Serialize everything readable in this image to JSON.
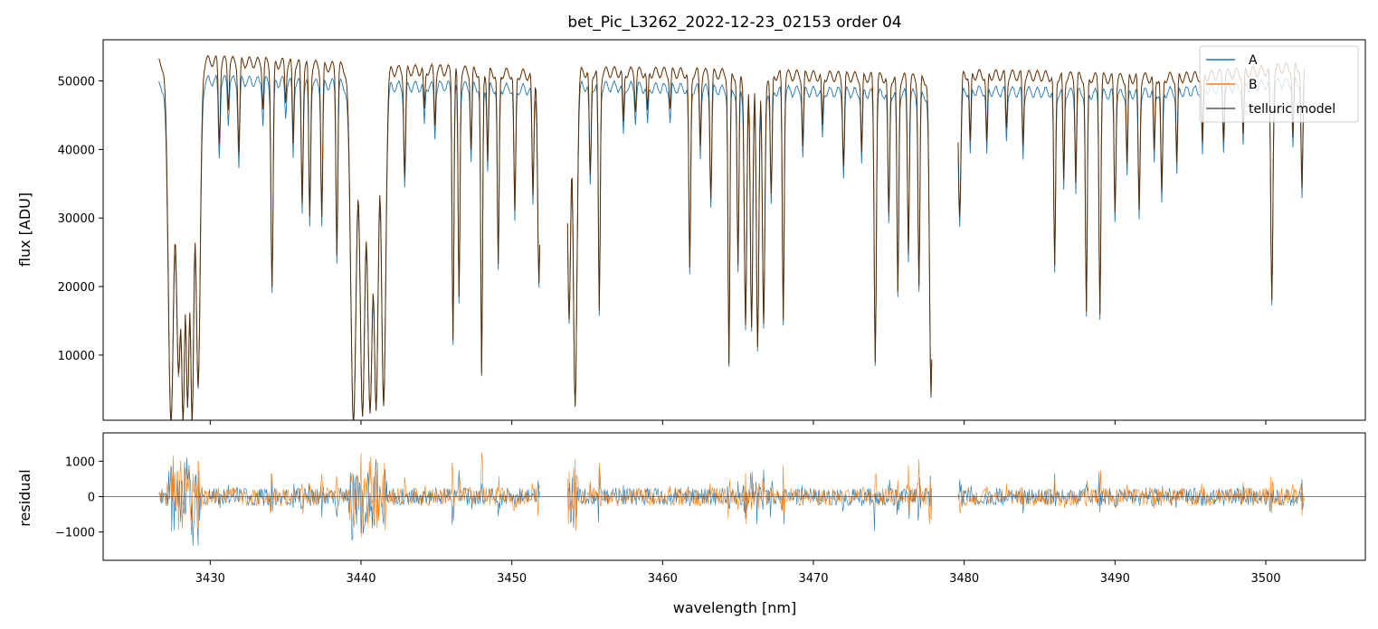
{
  "chart_data": [
    {
      "type": "line",
      "panel": "top",
      "title": "bet_Pic_L3262_2022-12-23_02153  order 04",
      "xlabel": "",
      "ylabel": "flux [ADU]",
      "xlim": [
        3422.9,
        3506.6
      ],
      "ylim": [
        500,
        56000
      ],
      "xticks": [
        3430,
        3440,
        3450,
        3460,
        3470,
        3480,
        3490,
        3500
      ],
      "yticks": [
        10000,
        20000,
        30000,
        40000,
        50000
      ],
      "ytick_labels": [
        "10000",
        "20000",
        "30000",
        "40000",
        "50000"
      ],
      "legend_position": "top-right",
      "data_segments": [
        [
          3426.6,
          3451.9
        ],
        [
          3453.7,
          3477.9
        ],
        [
          3479.6,
          3502.6
        ]
      ],
      "continuum": {
        "x": [
          3426.6,
          3430,
          3435,
          3440,
          3441,
          3445,
          3450,
          3451.9,
          3453.7,
          3455,
          3460,
          3465,
          3470,
          3475,
          3477.9,
          3479.6,
          3485,
          3490,
          3495,
          3500,
          3502.6
        ],
        "A": [
          50000,
          50800,
          50600,
          50000,
          49800,
          50000,
          49600,
          49400,
          50200,
          50000,
          49700,
          49300,
          49200,
          48900,
          48600,
          49300,
          49100,
          48800,
          49200,
          50200,
          50800
        ],
        "B": [
          53400,
          53700,
          53300,
          52500,
          52200,
          52400,
          51800,
          51500,
          52000,
          52100,
          52000,
          51700,
          51500,
          51200,
          50900,
          51700,
          51500,
          51100,
          51300,
          52300,
          53000
        ]
      },
      "absorption_lines": [
        {
          "x": 3427.4,
          "depth": 1.0,
          "w": 0.18
        },
        {
          "x": 3427.9,
          "depth": 0.85,
          "w": 0.15
        },
        {
          "x": 3428.2,
          "depth": 1.0,
          "w": 0.12
        },
        {
          "x": 3428.5,
          "depth": 0.95,
          "w": 0.12
        },
        {
          "x": 3428.8,
          "depth": 1.0,
          "w": 0.12
        },
        {
          "x": 3429.2,
          "depth": 0.9,
          "w": 0.14
        },
        {
          "x": 3430.6,
          "depth": 0.22,
          "w": 0.06
        },
        {
          "x": 3431.2,
          "depth": 0.12,
          "w": 0.05
        },
        {
          "x": 3431.9,
          "depth": 0.25,
          "w": 0.06
        },
        {
          "x": 3433.5,
          "depth": 0.12,
          "w": 0.05
        },
        {
          "x": 3434.1,
          "depth": 0.62,
          "w": 0.07
        },
        {
          "x": 3435.0,
          "depth": 0.1,
          "w": 0.05
        },
        {
          "x": 3435.5,
          "depth": 0.22,
          "w": 0.05
        },
        {
          "x": 3436.1,
          "depth": 0.38,
          "w": 0.06
        },
        {
          "x": 3436.6,
          "depth": 0.42,
          "w": 0.06
        },
        {
          "x": 3437.4,
          "depth": 0.42,
          "w": 0.06
        },
        {
          "x": 3438.4,
          "depth": 0.52,
          "w": 0.06
        },
        {
          "x": 3439.5,
          "depth": 1.0,
          "w": 0.18
        },
        {
          "x": 3440.1,
          "depth": 0.98,
          "w": 0.16
        },
        {
          "x": 3440.6,
          "depth": 0.97,
          "w": 0.16
        },
        {
          "x": 3441.0,
          "depth": 0.96,
          "w": 0.14
        },
        {
          "x": 3441.5,
          "depth": 0.95,
          "w": 0.14
        },
        {
          "x": 3442.9,
          "depth": 0.3,
          "w": 0.06
        },
        {
          "x": 3444.2,
          "depth": 0.12,
          "w": 0.05
        },
        {
          "x": 3444.9,
          "depth": 0.15,
          "w": 0.05
        },
        {
          "x": 3446.1,
          "depth": 0.76,
          "w": 0.06
        },
        {
          "x": 3446.5,
          "depth": 0.64,
          "w": 0.06
        },
        {
          "x": 3447.3,
          "depth": 0.22,
          "w": 0.05
        },
        {
          "x": 3448.0,
          "depth": 0.86,
          "w": 0.06
        },
        {
          "x": 3448.4,
          "depth": 0.25,
          "w": 0.05
        },
        {
          "x": 3449.1,
          "depth": 0.55,
          "w": 0.06
        },
        {
          "x": 3450.2,
          "depth": 0.4,
          "w": 0.06
        },
        {
          "x": 3451.4,
          "depth": 0.35,
          "w": 0.06
        },
        {
          "x": 3451.8,
          "depth": 0.6,
          "w": 0.08
        },
        {
          "x": 3453.8,
          "depth": 0.7,
          "w": 0.1
        },
        {
          "x": 3454.2,
          "depth": 0.95,
          "w": 0.12
        },
        {
          "x": 3455.2,
          "depth": 0.3,
          "w": 0.06
        },
        {
          "x": 3455.8,
          "depth": 0.68,
          "w": 0.06
        },
        {
          "x": 3457.4,
          "depth": 0.15,
          "w": 0.05
        },
        {
          "x": 3458.2,
          "depth": 0.1,
          "w": 0.05
        },
        {
          "x": 3459.0,
          "depth": 0.12,
          "w": 0.05
        },
        {
          "x": 3460.5,
          "depth": 0.1,
          "w": 0.05
        },
        {
          "x": 3461.8,
          "depth": 0.56,
          "w": 0.06
        },
        {
          "x": 3462.5,
          "depth": 0.2,
          "w": 0.05
        },
        {
          "x": 3463.2,
          "depth": 0.35,
          "w": 0.06
        },
        {
          "x": 3464.4,
          "depth": 0.83,
          "w": 0.06
        },
        {
          "x": 3465.0,
          "depth": 0.55,
          "w": 0.06
        },
        {
          "x": 3465.5,
          "depth": 0.72,
          "w": 0.08
        },
        {
          "x": 3465.9,
          "depth": 0.72,
          "w": 0.08
        },
        {
          "x": 3466.3,
          "depth": 0.78,
          "w": 0.08
        },
        {
          "x": 3466.7,
          "depth": 0.72,
          "w": 0.08
        },
        {
          "x": 3467.2,
          "depth": 0.35,
          "w": 0.06
        },
        {
          "x": 3468.0,
          "depth": 0.7,
          "w": 0.06
        },
        {
          "x": 3469.3,
          "depth": 0.2,
          "w": 0.05
        },
        {
          "x": 3470.6,
          "depth": 0.15,
          "w": 0.05
        },
        {
          "x": 3472.0,
          "depth": 0.25,
          "w": 0.06
        },
        {
          "x": 3473.2,
          "depth": 0.22,
          "w": 0.05
        },
        {
          "x": 3474.1,
          "depth": 0.82,
          "w": 0.07
        },
        {
          "x": 3475.0,
          "depth": 0.4,
          "w": 0.06
        },
        {
          "x": 3475.6,
          "depth": 0.62,
          "w": 0.06
        },
        {
          "x": 3476.3,
          "depth": 0.5,
          "w": 0.06
        },
        {
          "x": 3477.0,
          "depth": 0.6,
          "w": 0.06
        },
        {
          "x": 3477.8,
          "depth": 0.92,
          "w": 0.1
        },
        {
          "x": 3479.7,
          "depth": 0.4,
          "w": 0.08
        },
        {
          "x": 3480.4,
          "depth": 0.2,
          "w": 0.05
        },
        {
          "x": 3481.5,
          "depth": 0.2,
          "w": 0.05
        },
        {
          "x": 3482.8,
          "depth": 0.15,
          "w": 0.05
        },
        {
          "x": 3483.9,
          "depth": 0.2,
          "w": 0.05
        },
        {
          "x": 3486.0,
          "depth": 0.55,
          "w": 0.06
        },
        {
          "x": 3486.6,
          "depth": 0.3,
          "w": 0.05
        },
        {
          "x": 3487.4,
          "depth": 0.3,
          "w": 0.05
        },
        {
          "x": 3488.1,
          "depth": 0.68,
          "w": 0.06
        },
        {
          "x": 3489.0,
          "depth": 0.68,
          "w": 0.06
        },
        {
          "x": 3490.0,
          "depth": 0.38,
          "w": 0.06
        },
        {
          "x": 3490.8,
          "depth": 0.25,
          "w": 0.05
        },
        {
          "x": 3491.6,
          "depth": 0.38,
          "w": 0.06
        },
        {
          "x": 3492.6,
          "depth": 0.22,
          "w": 0.05
        },
        {
          "x": 3493.1,
          "depth": 0.34,
          "w": 0.06
        },
        {
          "x": 3494.1,
          "depth": 0.25,
          "w": 0.05
        },
        {
          "x": 3495.8,
          "depth": 0.2,
          "w": 0.05
        },
        {
          "x": 3497.2,
          "depth": 0.18,
          "w": 0.05
        },
        {
          "x": 3498.5,
          "depth": 0.18,
          "w": 0.05
        },
        {
          "x": 3500.4,
          "depth": 0.65,
          "w": 0.07
        },
        {
          "x": 3501.8,
          "depth": 0.2,
          "w": 0.05
        },
        {
          "x": 3502.4,
          "depth": 0.35,
          "w": 0.06
        }
      ],
      "series": [
        {
          "name": "A",
          "color": "#1f77b4"
        },
        {
          "name": "B",
          "color": "#ff7f0e"
        },
        {
          "name": "telluric model",
          "color": "#555555"
        }
      ]
    },
    {
      "type": "line",
      "panel": "bottom",
      "xlabel": "wavelength [nm]",
      "ylabel": "residual",
      "xlim": [
        3422.9,
        3506.6
      ],
      "ylim": [
        -1800,
        1800
      ],
      "xticks": [
        3430,
        3440,
        3450,
        3460,
        3470,
        3480,
        3490,
        3500
      ],
      "xtick_labels": [
        "3430",
        "3440",
        "3450",
        "3460",
        "3470",
        "3480",
        "3490",
        "3500"
      ],
      "yticks": [
        -1000,
        0,
        1000
      ],
      "ytick_labels": [
        "−1000",
        "0",
        "1000"
      ],
      "zero_line": 0,
      "series": [
        {
          "name": "A",
          "color": "#1f77b4"
        },
        {
          "name": "B",
          "color": "#ff7f0e"
        }
      ]
    }
  ]
}
